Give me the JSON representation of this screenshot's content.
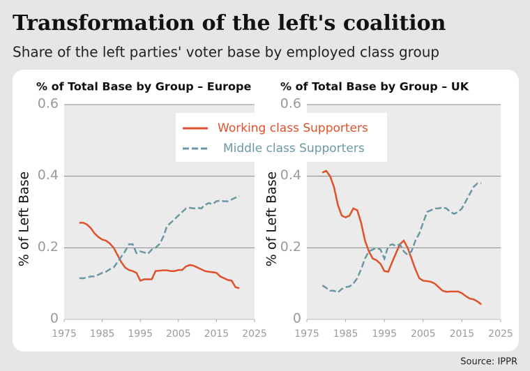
{
  "title": "Transformation of the left's coalition",
  "subtitle": "Share of the left parties' voter base by employed class group",
  "source": "Source: IPPR",
  "chart_data": [
    {
      "type": "line",
      "title": "% of Total Base by Group – Europe",
      "y_label": "% of Left Base",
      "x": [
        1979,
        1980,
        1981,
        1982,
        1983,
        1984,
        1985,
        1986,
        1987,
        1988,
        1989,
        1990,
        1991,
        1992,
        1993,
        1994,
        1995,
        1996,
        1997,
        1998,
        1999,
        2000,
        2001,
        2002,
        2003,
        2004,
        2005,
        2006,
        2007,
        2008,
        2009,
        2010,
        2011,
        2012,
        2013,
        2014,
        2015,
        2016,
        2017,
        2018,
        2019,
        2020,
        2021
      ],
      "series": [
        {
          "name": "Working class Supporters",
          "color": "#e0502a",
          "line_style": "solid",
          "values": [
            0.27,
            0.27,
            0.265,
            0.255,
            0.24,
            0.23,
            0.223,
            0.22,
            0.212,
            0.2,
            0.18,
            0.16,
            0.145,
            0.138,
            0.135,
            0.13,
            0.108,
            0.112,
            0.112,
            0.112,
            0.135,
            0.136,
            0.137,
            0.137,
            0.135,
            0.135,
            0.138,
            0.138,
            0.148,
            0.152,
            0.15,
            0.145,
            0.14,
            0.135,
            0.133,
            0.132,
            0.13,
            0.12,
            0.115,
            0.11,
            0.108,
            0.09,
            0.087
          ]
        },
        {
          "name": "Middle class Supporters",
          "color": "#6b97a3",
          "line_style": "dashed",
          "values": [
            0.115,
            0.115,
            0.117,
            0.12,
            0.12,
            0.125,
            0.13,
            0.133,
            0.14,
            0.145,
            0.16,
            0.175,
            0.19,
            0.21,
            0.21,
            0.185,
            0.19,
            0.187,
            0.183,
            0.195,
            0.2,
            0.21,
            0.23,
            0.26,
            0.27,
            0.28,
            0.29,
            0.3,
            0.31,
            0.312,
            0.31,
            0.312,
            0.31,
            0.32,
            0.325,
            0.322,
            0.33,
            0.332,
            0.33,
            0.33,
            0.335,
            0.34,
            0.345
          ]
        }
      ],
      "xlim": [
        1975,
        2025
      ],
      "xticks": [
        1975,
        1985,
        1995,
        2005,
        2015,
        2025
      ],
      "ylim": [
        0,
        0.6
      ],
      "yticks": [
        0,
        0.2,
        0.4,
        0.6
      ],
      "grid": true
    },
    {
      "type": "line",
      "title": "% of Total Base by Group – UK",
      "y_label": "% of Left Base",
      "x": [
        1979,
        1980,
        1981,
        1982,
        1983,
        1984,
        1985,
        1986,
        1987,
        1988,
        1989,
        1990,
        1991,
        1992,
        1993,
        1994,
        1995,
        1996,
        1997,
        1998,
        1999,
        2000,
        2001,
        2002,
        2003,
        2004,
        2005,
        2006,
        2007,
        2008,
        2009,
        2010,
        2011,
        2012,
        2013,
        2014,
        2015,
        2016,
        2017,
        2018,
        2019,
        2020
      ],
      "series": [
        {
          "color": "#e0502a",
          "line_style": "solid",
          "values": [
            0.41,
            0.415,
            0.4,
            0.37,
            0.32,
            0.29,
            0.285,
            0.29,
            0.31,
            0.305,
            0.27,
            0.22,
            0.19,
            0.17,
            0.165,
            0.155,
            0.135,
            0.133,
            0.16,
            0.185,
            0.21,
            0.22,
            0.2,
            0.17,
            0.14,
            0.115,
            0.108,
            0.107,
            0.105,
            0.1,
            0.09,
            0.08,
            0.077,
            0.078,
            0.078,
            0.078,
            0.073,
            0.065,
            0.058,
            0.056,
            0.05,
            0.042
          ]
        },
        {
          "color": "#6b97a3",
          "line_style": "dashed",
          "values": [
            0.095,
            0.088,
            0.08,
            0.08,
            0.075,
            0.085,
            0.09,
            0.092,
            0.1,
            0.115,
            0.14,
            0.17,
            0.19,
            0.195,
            0.2,
            0.195,
            0.17,
            0.205,
            0.21,
            0.205,
            0.21,
            0.19,
            0.18,
            0.19,
            0.22,
            0.24,
            0.27,
            0.3,
            0.305,
            0.31,
            0.31,
            0.313,
            0.31,
            0.3,
            0.295,
            0.3,
            0.31,
            0.33,
            0.35,
            0.37,
            0.38,
            0.38
          ]
        }
      ],
      "xlim": [
        1975,
        2025
      ],
      "xticks": [
        1975,
        1985,
        1995,
        2005,
        2015,
        2025
      ],
      "ylim": [
        0,
        0.6
      ],
      "yticks": [
        0,
        0.2,
        0.4,
        0.6
      ],
      "grid": true
    }
  ]
}
